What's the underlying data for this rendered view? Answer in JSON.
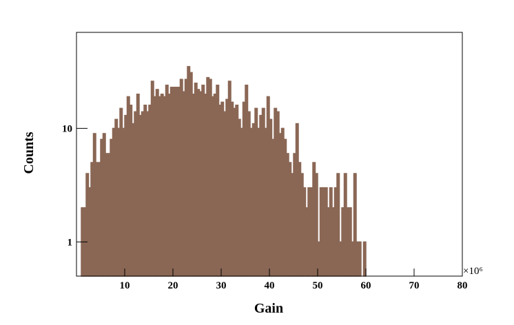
{
  "chart_data": {
    "type": "histogram",
    "x_label": "Gain",
    "y_label": "Counts",
    "x_multiplier": "×10⁶",
    "bins": [
      1,
      1.5,
      2,
      2.5,
      3,
      3.5,
      4,
      4.5,
      5,
      5.5,
      6,
      6.5,
      7,
      7.5,
      8,
      8.5,
      9,
      9.5,
      10,
      10.5,
      11,
      11.5,
      12,
      12.5,
      13,
      13.5,
      14,
      14.5,
      15,
      15.5,
      16,
      16.5,
      17,
      17.5,
      18,
      18.5,
      19,
      19.5,
      20,
      20.5,
      21,
      21.5,
      22,
      22.5,
      23,
      23.5,
      24,
      24.5,
      25,
      25.5,
      26,
      26.5,
      27,
      27.5,
      28,
      28.5,
      29,
      29.5,
      30,
      30.5,
      31,
      31.5,
      32,
      32.5,
      33,
      33.5,
      34,
      34.5,
      35,
      35.5,
      36,
      36.5,
      37,
      37.5,
      38,
      38.5,
      39,
      39.5,
      40,
      40.5,
      41,
      41.5,
      42,
      42.5,
      43,
      43.5,
      44,
      44.5,
      45,
      45.5,
      46,
      46.5,
      47,
      47.5,
      48,
      48.5,
      49,
      49.5,
      50,
      50.5,
      51,
      51.5,
      52,
      52.5,
      53,
      53.5,
      54,
      54.5,
      55,
      55.5,
      56,
      56.5,
      57,
      57.5,
      58,
      58.5,
      59,
      59.5,
      60
    ],
    "values": [
      2,
      2,
      4,
      3,
      5,
      9,
      5,
      5,
      8,
      9,
      6,
      6,
      8,
      10,
      12,
      10,
      15,
      10,
      13,
      19,
      16,
      11,
      14,
      20,
      13,
      14,
      16,
      14,
      16,
      26,
      19,
      22,
      19,
      20,
      19,
      24,
      20,
      23,
      23,
      23,
      23,
      27,
      21,
      27,
      35,
      31,
      20,
      25,
      22,
      21,
      24,
      20,
      28,
      27,
      19,
      20,
      24,
      16,
      17,
      14,
      18,
      26,
      17,
      15,
      16,
      12,
      10,
      17,
      24,
      14,
      10,
      11,
      15,
      10,
      13,
      15,
      10,
      19,
      12,
      8,
      15,
      14,
      9,
      10,
      8,
      6,
      5,
      4,
      6,
      11,
      5,
      4,
      3,
      2,
      3,
      3,
      5,
      4,
      1,
      3,
      3,
      3,
      2,
      3,
      2,
      3,
      4,
      1,
      2,
      4,
      2,
      2,
      1,
      4,
      1,
      1,
      0,
      1
    ],
    "color": "#8a6755",
    "xlim": [
      0,
      80
    ],
    "xticks": [
      10,
      20,
      30,
      40,
      50,
      60,
      70,
      80
    ],
    "ylim": [
      0.5,
      70
    ],
    "yticks": [
      1,
      10
    ],
    "log_y": true
  }
}
